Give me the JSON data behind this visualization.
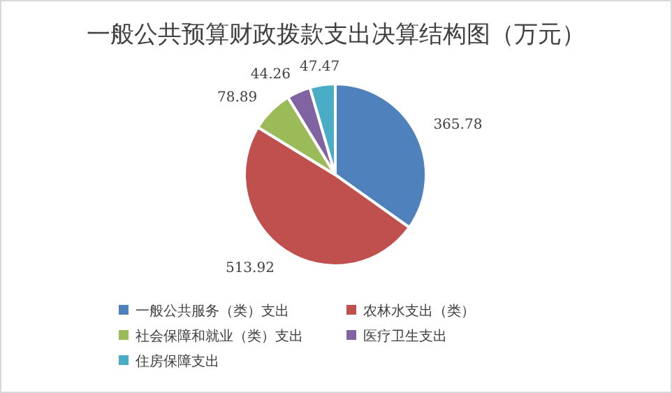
{
  "chart_data": {
    "type": "pie",
    "title": "一般公共预算财政拨款支出决算结构图（万元）",
    "categories": [
      "一般公共服务（类）支出",
      "农林水支出（类）",
      "社会保障和就业（类）支出",
      "医疗卫生支出",
      "住房保障支出"
    ],
    "values": [
      365.78,
      513.92,
      78.89,
      44.26,
      47.47
    ],
    "colors": [
      "#4f81bd",
      "#c0504d",
      "#9bbb59",
      "#8064a2",
      "#4bacc6"
    ],
    "data_labels": true,
    "legend": "bottom"
  }
}
